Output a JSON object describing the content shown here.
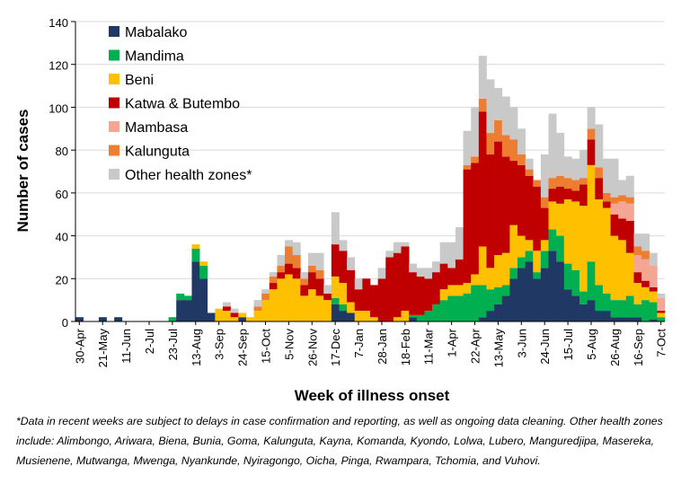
{
  "chart_data": {
    "type": "bar",
    "stacked": true,
    "title": "",
    "ylabel": "Number of cases",
    "xlabel": "Week of illness onset",
    "ylim": [
      0,
      140
    ],
    "yticks": [
      0,
      20,
      40,
      60,
      80,
      100,
      120,
      140
    ],
    "legend_position": "top-left",
    "tick_labels": [
      "30-Apr",
      "21-May",
      "11-Jun",
      "2-Jul",
      "23-Jul",
      "13-Aug",
      "3-Sep",
      "24-Sep",
      "15-Oct",
      "5-Nov",
      "26-Nov",
      "17-Dec",
      "7-Jan",
      "28-Jan",
      "18-Feb",
      "11-Mar",
      "1-Apr",
      "22-Apr",
      "13-May",
      "3-Jun",
      "24-Jun",
      "15-Jul",
      "5-Aug",
      "26-Aug",
      "16-Sep",
      "7-Oct"
    ],
    "weeks": 76,
    "series": [
      {
        "name": "Mabalako",
        "color": "#1F3864",
        "values": [
          2,
          0,
          0,
          2,
          0,
          2,
          0,
          0,
          0,
          0,
          0,
          0,
          0,
          10,
          10,
          28,
          20,
          4,
          0,
          0,
          0,
          2,
          0,
          0,
          0,
          0,
          0,
          0,
          0,
          0,
          0,
          0,
          0,
          8,
          5,
          4,
          0,
          0,
          0,
          0,
          0,
          0,
          0,
          2,
          0,
          0,
          0,
          0,
          0,
          0,
          0,
          0,
          2,
          5,
          8,
          12,
          20,
          25,
          28,
          20,
          25,
          33,
          28,
          15,
          12,
          8,
          10,
          5,
          5,
          2,
          2,
          2,
          2,
          0,
          1,
          0
        ]
      },
      {
        "name": "Mandima",
        "color": "#00B050",
        "values": [
          0,
          0,
          0,
          0,
          0,
          0,
          0,
          0,
          0,
          0,
          0,
          0,
          2,
          3,
          2,
          6,
          6,
          0,
          0,
          0,
          0,
          0,
          0,
          0,
          0,
          0,
          0,
          0,
          0,
          0,
          0,
          0,
          0,
          3,
          3,
          0,
          0,
          0,
          0,
          0,
          0,
          0,
          0,
          1,
          3,
          5,
          8,
          10,
          12,
          12,
          13,
          17,
          15,
          10,
          8,
          5,
          5,
          5,
          5,
          3,
          8,
          10,
          12,
          12,
          12,
          6,
          18,
          12,
          8,
          8,
          8,
          10,
          6,
          10,
          8,
          2
        ]
      },
      {
        "name": "Beni",
        "color": "#FFC000",
        "values": [
          0,
          0,
          0,
          0,
          0,
          0,
          0,
          0,
          0,
          0,
          0,
          0,
          0,
          0,
          0,
          2,
          2,
          0,
          6,
          5,
          2,
          2,
          2,
          5,
          10,
          15,
          20,
          22,
          20,
          12,
          15,
          12,
          10,
          10,
          10,
          5,
          5,
          5,
          2,
          0,
          0,
          2,
          5,
          0,
          0,
          0,
          0,
          5,
          5,
          5,
          5,
          5,
          18,
          10,
          15,
          15,
          20,
          10,
          5,
          10,
          5,
          13,
          15,
          30,
          32,
          40,
          45,
          40,
          40,
          30,
          28,
          20,
          10,
          6,
          5,
          2
        ]
      },
      {
        "name": "Katwa & Butembo",
        "color": "#C00000",
        "values": [
          0,
          0,
          0,
          0,
          0,
          0,
          0,
          0,
          0,
          0,
          0,
          0,
          0,
          0,
          0,
          0,
          0,
          0,
          0,
          2,
          2,
          0,
          0,
          0,
          0,
          3,
          3,
          5,
          5,
          5,
          8,
          8,
          3,
          15,
          15,
          15,
          10,
          15,
          15,
          20,
          30,
          30,
          30,
          20,
          18,
          15,
          15,
          12,
          8,
          12,
          53,
          52,
          63,
          53,
          53,
          45,
          30,
          33,
          30,
          30,
          15,
          6,
          8,
          5,
          5,
          10,
          12,
          10,
          3,
          10,
          10,
          15,
          5,
          3,
          2,
          1
        ]
      },
      {
        "name": "Mambasa",
        "color": "#F4A593",
        "values": [
          0,
          0,
          0,
          0,
          0,
          0,
          0,
          0,
          0,
          0,
          0,
          0,
          0,
          0,
          0,
          0,
          0,
          0,
          0,
          0,
          0,
          0,
          0,
          0,
          0,
          0,
          0,
          0,
          0,
          0,
          0,
          0,
          0,
          0,
          0,
          0,
          0,
          0,
          0,
          0,
          0,
          0,
          0,
          0,
          0,
          0,
          0,
          0,
          0,
          0,
          0,
          0,
          0,
          0,
          0,
          0,
          0,
          0,
          0,
          0,
          0,
          0,
          0,
          0,
          0,
          0,
          0,
          0,
          0,
          5,
          8,
          8,
          8,
          10,
          10,
          6
        ]
      },
      {
        "name": "Kalunguta",
        "color": "#ED7D31",
        "values": [
          0,
          0,
          0,
          0,
          0,
          0,
          0,
          0,
          0,
          0,
          0,
          0,
          0,
          0,
          0,
          0,
          0,
          0,
          0,
          0,
          0,
          0,
          0,
          2,
          3,
          3,
          3,
          8,
          6,
          3,
          3,
          4,
          0,
          0,
          0,
          0,
          0,
          0,
          0,
          0,
          0,
          0,
          0,
          0,
          0,
          0,
          0,
          0,
          0,
          0,
          2,
          3,
          6,
          10,
          10,
          10,
          10,
          5,
          3,
          3,
          5,
          5,
          5,
          5,
          5,
          3,
          5,
          5,
          4,
          3,
          3,
          3,
          4,
          4,
          0,
          0
        ]
      },
      {
        "name": "Other health zones*",
        "color": "#C9C9C9",
        "values": [
          0,
          0,
          0,
          0,
          0,
          0,
          0,
          0,
          0,
          0,
          0,
          0,
          0,
          0,
          0,
          0,
          0,
          0,
          0,
          2,
          2,
          0,
          0,
          3,
          2,
          2,
          5,
          3,
          6,
          3,
          6,
          8,
          4,
          15,
          5,
          6,
          5,
          0,
          0,
          5,
          3,
          5,
          2,
          4,
          4,
          5,
          5,
          10,
          12,
          15,
          16,
          23,
          20,
          25,
          15,
          18,
          15,
          12,
          5,
          0,
          20,
          30,
          20,
          10,
          10,
          13,
          10,
          20,
          16,
          18,
          7,
          10,
          6,
          8,
          6,
          2
        ]
      }
    ]
  },
  "footnote": "*Data in recent weeks are subject to delays in case confirmation and reporting, as well as ongoing data cleaning. Other health zones include: Alimbongo, Ariwara, Biena, Bunia, Goma, Kalunguta, Kayna, Komanda, Kyondo, Lolwa, Lubero, Manguredjipa, Masereka, Musienene, Mutwanga, Mwenga, Nyankunde, Nyiragongo, Oicha, Pinga, Rwampara, Tchomia, and Vuhovi."
}
